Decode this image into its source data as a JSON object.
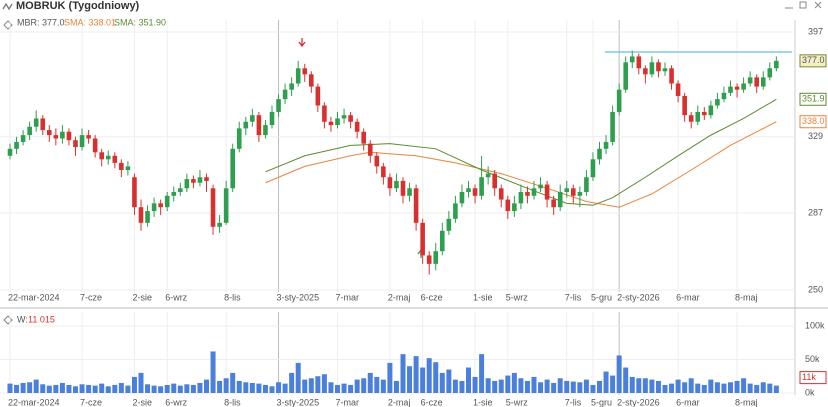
{
  "chart_data": {
    "type": "candlestick",
    "title": "MOBRUK (Tygodniowy)",
    "log_scale": true,
    "grid": true,
    "up_color": "#2e9e4f",
    "down_color": "#d8302f",
    "categories": [
      "22-mar-2024",
      null,
      null,
      null,
      null,
      null,
      null,
      null,
      null,
      null,
      null,
      "7-cze",
      null,
      null,
      null,
      null,
      null,
      null,
      null,
      "2-sie",
      null,
      null,
      null,
      null,
      "6-wrz",
      null,
      null,
      null,
      null,
      null,
      null,
      null,
      null,
      "8-lis",
      null,
      null,
      null,
      null,
      null,
      null,
      null,
      "3-sty-2025",
      null,
      null,
      null,
      null,
      null,
      null,
      null,
      null,
      "7-mar",
      null,
      null,
      null,
      null,
      null,
      null,
      null,
      "2-maj",
      null,
      null,
      null,
      null,
      "6-cze",
      null,
      null,
      null,
      null,
      null,
      null,
      null,
      "1-sie",
      null,
      null,
      null,
      null,
      "5-wrz",
      null,
      null,
      null,
      null,
      null,
      null,
      null,
      null,
      "7-lis",
      null,
      null,
      null,
      "5-gru",
      null,
      null,
      null,
      "2-sty-2026",
      null,
      null,
      null,
      null,
      null,
      null,
      null,
      null,
      "6-mar",
      null,
      null,
      null,
      null,
      null,
      null,
      null,
      null,
      "8-maj",
      null,
      null,
      null,
      null,
      null,
      null
    ],
    "ohlc": [
      [
        318,
        325,
        316,
        322
      ],
      [
        322,
        329,
        319,
        326
      ],
      [
        326,
        333,
        324,
        330
      ],
      [
        330,
        338,
        327,
        335
      ],
      [
        335,
        345,
        332,
        340
      ],
      [
        340,
        342,
        330,
        333
      ],
      [
        333,
        336,
        326,
        330
      ],
      [
        330,
        334,
        324,
        328
      ],
      [
        328,
        336,
        325,
        332
      ],
      [
        332,
        334,
        324,
        327
      ],
      [
        327,
        329,
        318,
        323
      ],
      [
        323,
        334,
        321,
        330
      ],
      [
        330,
        333,
        325,
        328
      ],
      [
        328,
        330,
        317,
        320
      ],
      [
        320,
        322,
        312,
        316
      ],
      [
        316,
        321,
        313,
        318
      ],
      [
        318,
        320,
        311,
        314
      ],
      [
        314,
        316,
        306,
        310
      ],
      [
        310,
        315,
        307,
        312
      ],
      [
        306,
        308,
        286,
        290
      ],
      [
        290,
        294,
        278,
        282
      ],
      [
        282,
        291,
        280,
        288
      ],
      [
        288,
        295,
        285,
        292
      ],
      [
        292,
        294,
        286,
        290
      ],
      [
        290,
        298,
        288,
        296
      ],
      [
        296,
        301,
        293,
        298
      ],
      [
        298,
        303,
        296,
        300
      ],
      [
        300,
        308,
        298,
        305
      ],
      [
        305,
        307,
        300,
        303
      ],
      [
        303,
        310,
        301,
        306
      ],
      [
        306,
        308,
        298,
        304
      ],
      [
        300,
        302,
        276,
        280
      ],
      [
        280,
        286,
        277,
        282
      ],
      [
        282,
        304,
        281,
        300
      ],
      [
        300,
        325,
        298,
        322
      ],
      [
        322,
        338,
        320,
        334
      ],
      [
        334,
        341,
        330,
        338
      ],
      [
        338,
        346,
        335,
        342
      ],
      [
        342,
        344,
        326,
        330
      ],
      [
        330,
        339,
        328,
        336
      ],
      [
        336,
        348,
        334,
        344
      ],
      [
        344,
        355,
        341,
        352
      ],
      [
        352,
        362,
        349,
        358
      ],
      [
        358,
        366,
        354,
        362
      ],
      [
        362,
        377,
        360,
        372
      ],
      [
        372,
        375,
        363,
        368
      ],
      [
        368,
        370,
        356,
        360
      ],
      [
        360,
        362,
        344,
        348
      ],
      [
        348,
        350,
        334,
        338
      ],
      [
        338,
        341,
        332,
        336
      ],
      [
        336,
        344,
        334,
        340
      ],
      [
        340,
        346,
        337,
        342
      ],
      [
        342,
        344,
        334,
        338
      ],
      [
        338,
        340,
        328,
        332
      ],
      [
        332,
        334,
        321,
        325
      ],
      [
        325,
        327,
        314,
        318
      ],
      [
        318,
        320,
        308,
        312
      ],
      [
        312,
        314,
        302,
        306
      ],
      [
        306,
        308,
        296,
        300
      ],
      [
        300,
        308,
        298,
        304
      ],
      [
        304,
        306,
        292,
        296
      ],
      [
        296,
        303,
        293,
        300
      ],
      [
        300,
        302,
        278,
        282
      ],
      [
        282,
        284,
        262,
        266
      ],
      [
        266,
        268,
        257,
        262
      ],
      [
        262,
        272,
        259,
        268
      ],
      [
        268,
        282,
        266,
        278
      ],
      [
        278,
        288,
        276,
        284
      ],
      [
        284,
        296,
        282,
        292
      ],
      [
        292,
        302,
        290,
        298
      ],
      [
        298,
        304,
        295,
        300
      ],
      [
        300,
        302,
        292,
        296
      ],
      [
        296,
        318,
        294,
        306
      ],
      [
        306,
        312,
        302,
        308
      ],
      [
        308,
        310,
        296,
        300
      ],
      [
        300,
        302,
        290,
        294
      ],
      [
        294,
        296,
        284,
        288
      ],
      [
        288,
        296,
        285,
        292
      ],
      [
        292,
        302,
        289,
        298
      ],
      [
        298,
        301,
        292,
        296
      ],
      [
        296,
        304,
        294,
        300
      ],
      [
        300,
        306,
        298,
        302
      ],
      [
        302,
        304,
        290,
        294
      ],
      [
        294,
        296,
        286,
        290
      ],
      [
        290,
        302,
        288,
        298
      ],
      [
        298,
        304,
        295,
        300
      ],
      [
        300,
        302,
        292,
        296
      ],
      [
        296,
        301,
        290,
        298
      ],
      [
        298,
        310,
        296,
        306
      ],
      [
        306,
        320,
        304,
        316
      ],
      [
        316,
        326,
        313,
        322
      ],
      [
        322,
        330,
        319,
        326
      ],
      [
        326,
        348,
        324,
        344
      ],
      [
        344,
        362,
        342,
        358
      ],
      [
        358,
        380,
        356,
        376
      ],
      [
        376,
        384,
        372,
        380
      ],
      [
        380,
        382,
        368,
        372
      ],
      [
        372,
        374,
        362,
        368
      ],
      [
        368,
        380,
        366,
        376
      ],
      [
        376,
        378,
        366,
        370
      ],
      [
        370,
        376,
        367,
        372
      ],
      [
        372,
        374,
        358,
        362
      ],
      [
        362,
        364,
        350,
        354
      ],
      [
        354,
        356,
        338,
        342
      ],
      [
        342,
        344,
        334,
        338
      ],
      [
        338,
        348,
        336,
        344
      ],
      [
        344,
        347,
        339,
        342
      ],
      [
        342,
        351,
        340,
        348
      ],
      [
        348,
        356,
        346,
        352
      ],
      [
        352,
        360,
        350,
        356
      ],
      [
        356,
        364,
        354,
        360
      ],
      [
        360,
        362,
        353,
        358
      ],
      [
        358,
        366,
        356,
        362
      ],
      [
        362,
        370,
        360,
        366
      ],
      [
        366,
        368,
        356,
        360
      ],
      [
        360,
        370,
        358,
        366
      ],
      [
        366,
        376,
        364,
        372
      ],
      [
        372,
        380,
        370,
        377
      ]
    ],
    "ylim": [
      250,
      397
    ],
    "yticks": [
      250,
      287,
      329,
      397
    ],
    "last_label": {
      "name": "MBR: 377.0",
      "value": 377,
      "label": "377.0",
      "color": "#f3f0c8",
      "border": "#7a8a2a"
    },
    "series": [
      {
        "name": "SMA: 338.01",
        "color": "#e8843a",
        "label": "338.0",
        "x": [
          39,
          45,
          52,
          55,
          62,
          68,
          75,
          82,
          88,
          93,
          98,
          104,
          110,
          117
        ],
        "values": [
          303,
          312,
          318,
          320,
          318,
          314,
          308,
          300,
          293,
          290,
          297,
          310,
          324,
          338.01
        ]
      },
      {
        "name": "SMA: 351.90",
        "color": "#5c8a2e",
        "label": "351.9",
        "x": [
          39,
          45,
          52,
          58,
          65,
          72,
          79,
          85,
          89,
          92,
          97,
          102,
          107,
          112,
          117
        ],
        "values": [
          309,
          318,
          324,
          325,
          322,
          310,
          300,
          292,
          291,
          295,
          306,
          318,
          330,
          340,
          351.9
        ]
      }
    ],
    "resistance": {
      "value": 383,
      "color": "#7ec8e3"
    },
    "volume": {
      "title": "W:",
      "last_value": {
        "value": 11015,
        "label": "11 015"
      },
      "last_box": {
        "value": 11015,
        "label": "11k"
      },
      "color": "#4a7fdc",
      "ylim": [
        0,
        100000
      ],
      "yticks": [
        {
          "value": 0,
          "label": "0k"
        },
        {
          "value": 50000,
          "label": "50k"
        },
        {
          "value": 100000,
          "label": "100k"
        }
      ],
      "values": [
        14000,
        12000,
        15000,
        16000,
        20000,
        13000,
        11000,
        12000,
        15000,
        12000,
        10000,
        13000,
        12000,
        11000,
        14000,
        10000,
        12000,
        15000,
        11000,
        24000,
        30000,
        13000,
        11000,
        10000,
        12000,
        14000,
        11000,
        13000,
        12000,
        15000,
        20000,
        62000,
        18000,
        22000,
        30000,
        18000,
        16000,
        15000,
        14000,
        12000,
        10000,
        16000,
        14000,
        30000,
        45000,
        20000,
        22000,
        25000,
        28000,
        16000,
        12000,
        14000,
        12000,
        20000,
        22000,
        30000,
        24000,
        20000,
        45000,
        18000,
        58000,
        40000,
        55000,
        38000,
        52000,
        46000,
        30000,
        35000,
        20000,
        18000,
        38000,
        24000,
        58000,
        22000,
        18000,
        20000,
        26000,
        30000,
        22000,
        18000,
        24000,
        16000,
        20000,
        15000,
        22000,
        18000,
        17000,
        16000,
        20000,
        12000,
        18000,
        32000,
        26000,
        56000,
        38000,
        24000,
        22000,
        22000,
        20000,
        18000,
        12000,
        14000,
        20000,
        16000,
        22000,
        14000,
        12000,
        20000,
        16000,
        14000,
        16000,
        18000,
        22000,
        14000,
        12000,
        16000,
        14000,
        11015
      ]
    }
  }
}
